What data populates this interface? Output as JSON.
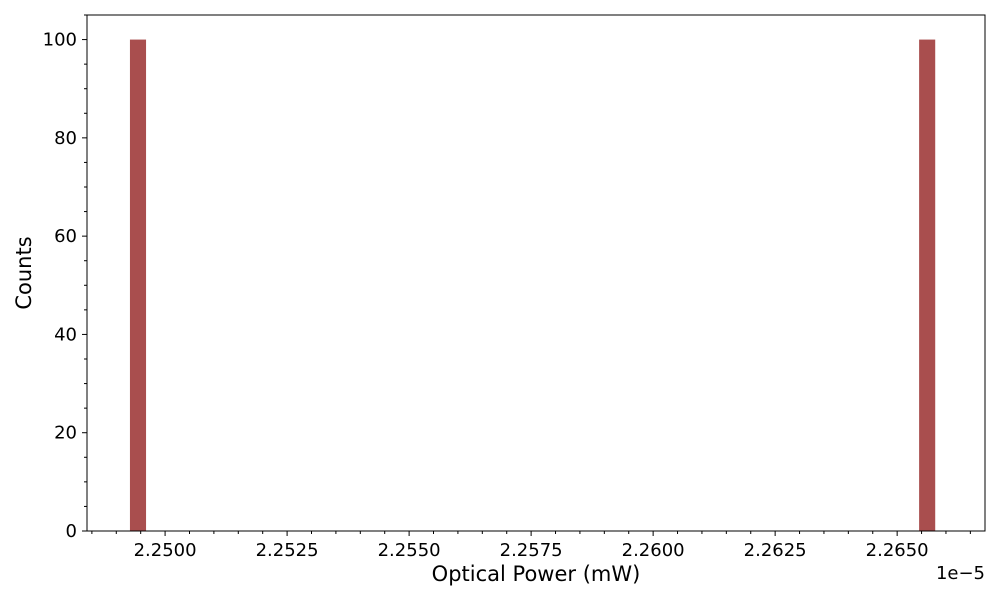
{
  "chart_data": {
    "type": "bar",
    "xlabel": "Optical Power (mW)",
    "ylabel": "Counts",
    "x_offset_label": "1e−5",
    "x_scale": 1e-05,
    "xlim": [
      2.2484,
      2.2668
    ],
    "ylim": [
      0,
      105
    ],
    "x_ticks": [
      2.25,
      2.2525,
      2.255,
      2.2575,
      2.26,
      2.2625,
      2.265
    ],
    "x_tick_labels": [
      "2.2500",
      "2.2525",
      "2.2550",
      "2.2575",
      "2.2600",
      "2.2625",
      "2.2650"
    ],
    "y_ticks": [
      0,
      20,
      40,
      60,
      80,
      100
    ],
    "y_tick_labels": [
      "0",
      "20",
      "40",
      "60",
      "80",
      "100"
    ],
    "grid": false,
    "bar_color": "#a94e4e",
    "bars": [
      {
        "x_start": 2.24928,
        "x_end": 2.24961,
        "count": 100
      },
      {
        "x_start": 2.26545,
        "x_end": 2.26578,
        "count": 100
      }
    ]
  }
}
